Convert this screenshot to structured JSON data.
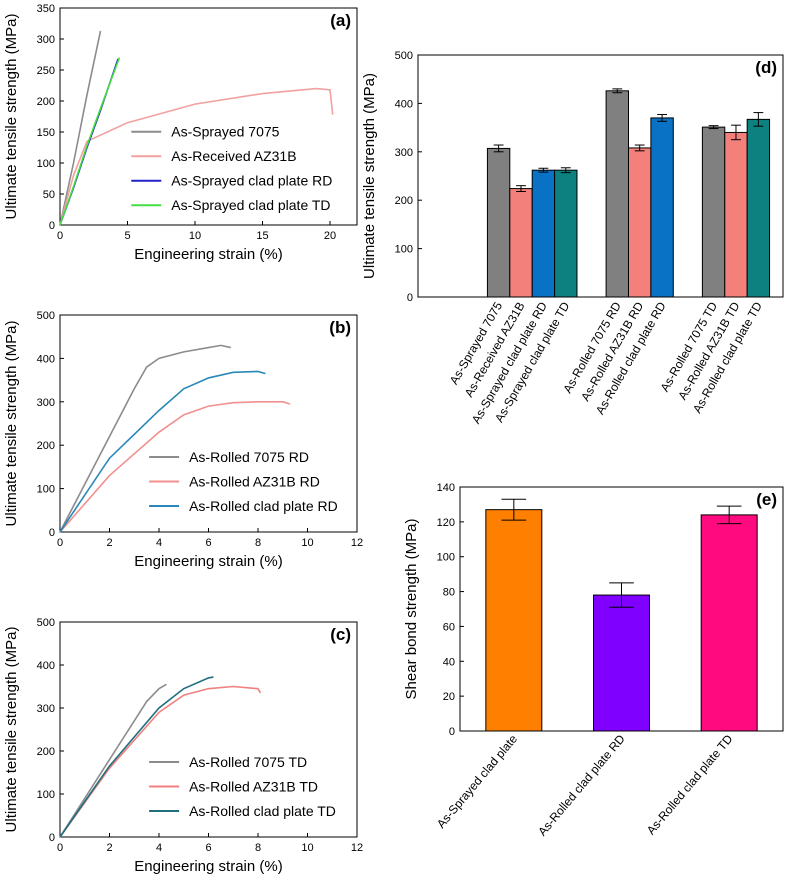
{
  "chart_data": [
    {
      "type": "line",
      "panel_label": "(a)",
      "xlabel": "Engineering strain (%)",
      "ylabel": "Ultimate tensile strength (MPa)",
      "xlim": [
        0,
        22
      ],
      "xticks": [
        0,
        5,
        10,
        15,
        20
      ],
      "ylim": [
        0,
        350
      ],
      "yticks": [
        0,
        50,
        100,
        150,
        200,
        250,
        300,
        350
      ],
      "legend": "center right",
      "series": [
        {
          "name": "As-Sprayed 7075",
          "color": "#8c8c8c",
          "x": [
            0,
            1,
            2,
            3
          ],
          "values": [
            0,
            100,
            210,
            313
          ]
        },
        {
          "name": "As-Received AZ31B",
          "color": "#f2a0a0",
          "x": [
            0,
            1,
            2,
            5,
            10,
            15,
            19,
            20,
            20.2
          ],
          "values": [
            0,
            80,
            135,
            165,
            195,
            212,
            220,
            218,
            178
          ]
        },
        {
          "name": "As-Sprayed clad plate RD",
          "color": "#2222cc",
          "x": [
            0,
            1,
            2,
            3,
            4.3
          ],
          "values": [
            0,
            60,
            125,
            185,
            268
          ]
        },
        {
          "name": "As-Sprayed clad plate TD",
          "color": "#44dd44",
          "x": [
            0,
            1,
            2,
            3,
            4.4
          ],
          "values": [
            0,
            62,
            128,
            188,
            270
          ]
        }
      ]
    },
    {
      "type": "line",
      "panel_label": "(b)",
      "xlabel": "Engineering strain (%)",
      "ylabel": "Ultimate tensile strength (MPa)",
      "xlim": [
        0,
        12
      ],
      "xticks": [
        0,
        2,
        4,
        6,
        8,
        10,
        12
      ],
      "ylim": [
        0,
        500
      ],
      "yticks": [
        0,
        100,
        200,
        300,
        400,
        500
      ],
      "legend": "lower right",
      "series": [
        {
          "name": "As-Rolled 7075 RD",
          "color": "#8c8c8c",
          "x": [
            0,
            1,
            2,
            3,
            3.5,
            4,
            5,
            6,
            6.5,
            6.9
          ],
          "values": [
            0,
            110,
            220,
            330,
            380,
            400,
            415,
            425,
            430,
            425
          ]
        },
        {
          "name": "As-Rolled AZ31B RD",
          "color": "#f29090",
          "x": [
            0,
            2,
            4,
            5,
            6,
            7,
            8,
            9,
            9.3
          ],
          "values": [
            0,
            130,
            230,
            270,
            290,
            298,
            300,
            300,
            295
          ]
        },
        {
          "name": "As-Rolled clad plate RD",
          "color": "#2a88b8",
          "x": [
            0,
            2,
            4,
            5,
            6,
            7,
            8,
            8.3
          ],
          "values": [
            0,
            170,
            280,
            330,
            355,
            368,
            370,
            365
          ]
        }
      ]
    },
    {
      "type": "line",
      "panel_label": "(c)",
      "xlabel": "Engineering strain (%)",
      "ylabel": "Ultimate tensile strength (MPa)",
      "xlim": [
        0,
        12
      ],
      "xticks": [
        0,
        2,
        4,
        6,
        8,
        10,
        12
      ],
      "ylim": [
        0,
        500
      ],
      "yticks": [
        0,
        100,
        200,
        300,
        400,
        500
      ],
      "legend": "lower right",
      "series": [
        {
          "name": "As-Rolled 7075 TD",
          "color": "#8c8c8c",
          "x": [
            0,
            1,
            2,
            3,
            3.5,
            4,
            4.3
          ],
          "values": [
            0,
            90,
            180,
            270,
            315,
            345,
            355
          ]
        },
        {
          "name": "As-Rolled AZ31B TD",
          "color": "#f27f7f",
          "x": [
            0,
            2,
            4,
            5,
            6,
            7,
            8,
            8.1
          ],
          "values": [
            0,
            160,
            290,
            330,
            345,
            350,
            345,
            335
          ]
        },
        {
          "name": "As-Rolled clad plate TD",
          "color": "#1f6f7f",
          "x": [
            0,
            2,
            4,
            5,
            6,
            6.2
          ],
          "values": [
            0,
            165,
            300,
            345,
            370,
            372
          ]
        }
      ]
    },
    {
      "type": "bar",
      "panel_label": "(d)",
      "ylabel": "Ultimate tensile strength (MPa)",
      "ylim": [
        0,
        500
      ],
      "yticks": [
        0,
        100,
        200,
        300,
        400,
        500
      ],
      "categories": [
        "As-Sprayed 7075",
        "As-Received AZ31B",
        "As-Sprayed clad plate RD",
        "As-Sprayed clad plate TD",
        "As-Rolled 7075 RD",
        "As-Rolled AZ31B RD",
        "As-Rolled clad plate RD",
        "As-Rolled 7075 TD",
        "As-Rolled AZ31B TD",
        "As-Rolled clad plate TD"
      ],
      "values": [
        307,
        224,
        262,
        262,
        426,
        308,
        370,
        351,
        340,
        367
      ],
      "errors": [
        7,
        6,
        4,
        5,
        4,
        6,
        7,
        3,
        15,
        14
      ],
      "colors": [
        "#808080",
        "#f4807b",
        "#0a72c4",
        "#0d8080",
        "#808080",
        "#f4807b",
        "#0a72c4",
        "#808080",
        "#f4807b",
        "#0d8080"
      ]
    },
    {
      "type": "bar",
      "panel_label": "(e)",
      "ylabel": "Shear bond strength (MPa)",
      "ylim": [
        0,
        140
      ],
      "yticks": [
        0,
        20,
        40,
        60,
        80,
        100,
        120,
        140
      ],
      "categories": [
        "As-Sprayed clad plate",
        "As-Rolled clad plate RD",
        "As-Rolled clad plate TD"
      ],
      "values": [
        127,
        78,
        124
      ],
      "errors": [
        6,
        7,
        5
      ],
      "colors": [
        "#ff7f00",
        "#7f00ff",
        "#ff0a7f"
      ]
    }
  ]
}
